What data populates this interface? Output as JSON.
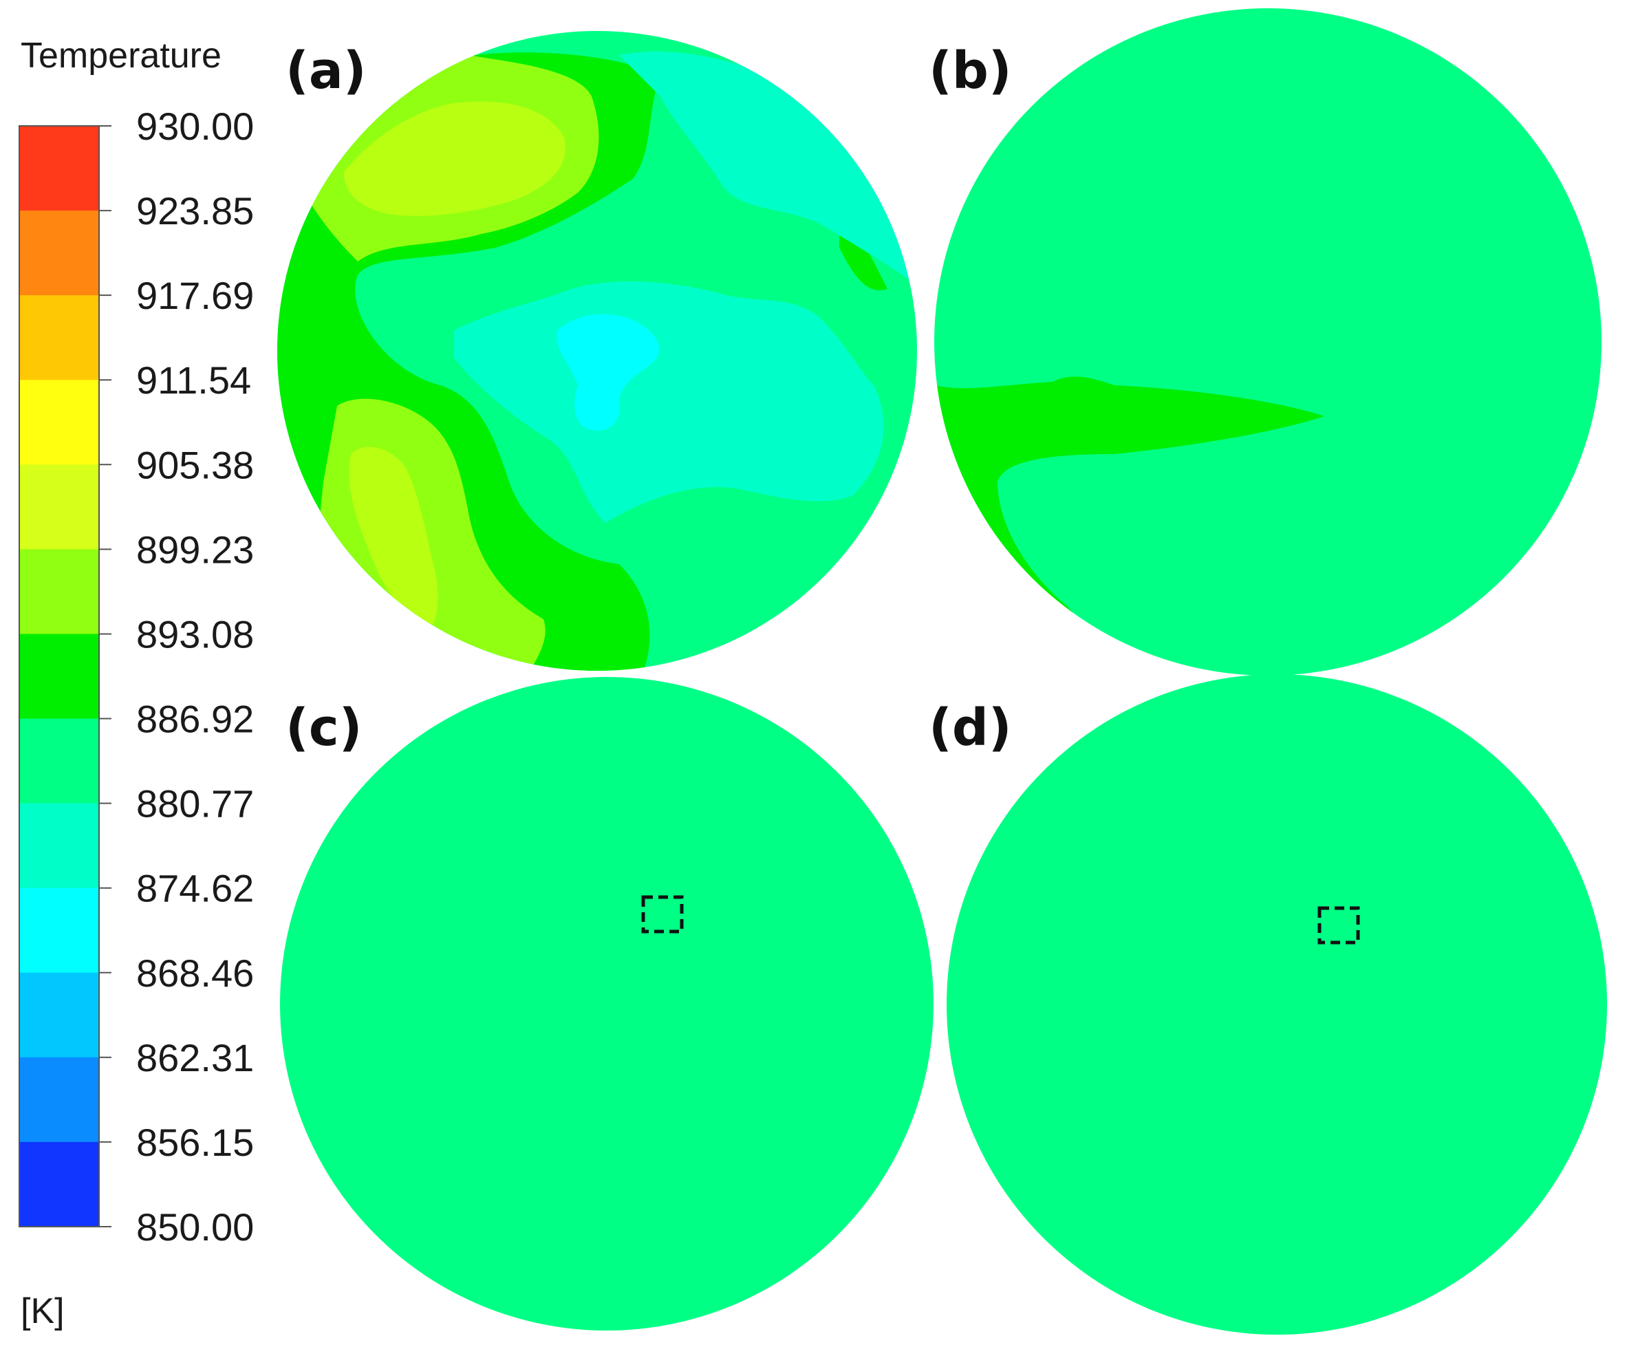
{
  "chart_data": {
    "type": "heatmap",
    "colorbar": {
      "title": "Temperature",
      "unit": "[K]",
      "range": [
        850.0,
        930.0
      ],
      "ticks": [
        "930.00",
        "923.85",
        "917.69",
        "911.54",
        "905.38",
        "899.23",
        "893.08",
        "886.92",
        "880.77",
        "874.62",
        "868.46",
        "862.31",
        "856.15",
        "850.00"
      ],
      "bands_top_to_bottom": [
        "#ff3a1a",
        "#ff8610",
        "#ffc805",
        "#ffff0f",
        "#d6ff1a",
        "#91ff11",
        "#00ee00",
        "#00ff85",
        "#00ffc8",
        "#00ffff",
        "#00c8ff",
        "#0a8cff",
        "#1036ff"
      ]
    },
    "panels": [
      {
        "label": "(a)",
        "description": "",
        "background": "#00ff85"
      },
      {
        "label": "(b)",
        "description": "",
        "background": "#00ff85"
      },
      {
        "label": "(c)",
        "description": "",
        "background": "#00ff85"
      },
      {
        "label": "(d)",
        "description": "",
        "background": "#00ff85"
      }
    ]
  }
}
